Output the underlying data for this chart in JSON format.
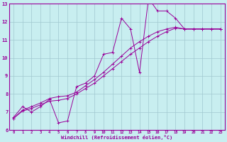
{
  "xlabel": "Windchill (Refroidissement éolien,°C)",
  "bg_color": "#c8eef0",
  "line_color": "#990099",
  "grid_color": "#a0c8d0",
  "xlim": [
    -0.5,
    23.5
  ],
  "ylim": [
    6,
    13
  ],
  "xticks": [
    0,
    1,
    2,
    3,
    4,
    5,
    6,
    7,
    8,
    9,
    10,
    11,
    12,
    13,
    14,
    15,
    16,
    17,
    18,
    19,
    20,
    21,
    22,
    23
  ],
  "yticks": [
    6,
    7,
    8,
    9,
    10,
    11,
    12,
    13
  ],
  "line1_x": [
    0,
    1,
    2,
    3,
    4,
    5,
    6,
    7,
    8,
    9,
    10,
    11,
    12,
    13,
    14,
    15,
    16,
    17,
    18,
    19,
    20,
    21,
    22,
    23
  ],
  "line1_y": [
    6.7,
    7.3,
    7.0,
    7.3,
    7.7,
    6.4,
    6.5,
    8.4,
    8.6,
    9.0,
    10.2,
    10.3,
    12.2,
    11.6,
    9.2,
    13.3,
    12.6,
    12.6,
    12.2,
    11.6,
    11.6,
    11.6,
    11.6,
    11.6
  ],
  "line2_x": [
    0,
    1,
    2,
    3,
    4,
    5,
    6,
    7,
    8,
    9,
    10,
    11,
    12,
    13,
    14,
    15,
    16,
    17,
    18,
    19,
    20,
    21,
    22,
    23
  ],
  "line2_y": [
    6.65,
    7.05,
    7.2,
    7.4,
    7.6,
    7.65,
    7.75,
    8.0,
    8.3,
    8.6,
    9.0,
    9.4,
    9.8,
    10.2,
    10.55,
    10.9,
    11.2,
    11.45,
    11.65,
    11.6,
    11.6,
    11.6,
    11.6,
    11.6
  ],
  "line3_x": [
    0,
    1,
    2,
    3,
    4,
    5,
    6,
    7,
    8,
    9,
    10,
    11,
    12,
    13,
    14,
    15,
    16,
    17,
    18,
    19,
    20,
    21,
    22,
    23
  ],
  "line3_y": [
    6.65,
    7.1,
    7.3,
    7.5,
    7.75,
    7.85,
    7.9,
    8.1,
    8.45,
    8.8,
    9.2,
    9.65,
    10.1,
    10.55,
    10.9,
    11.2,
    11.45,
    11.6,
    11.7,
    11.6,
    11.6,
    11.6,
    11.6,
    11.6
  ]
}
